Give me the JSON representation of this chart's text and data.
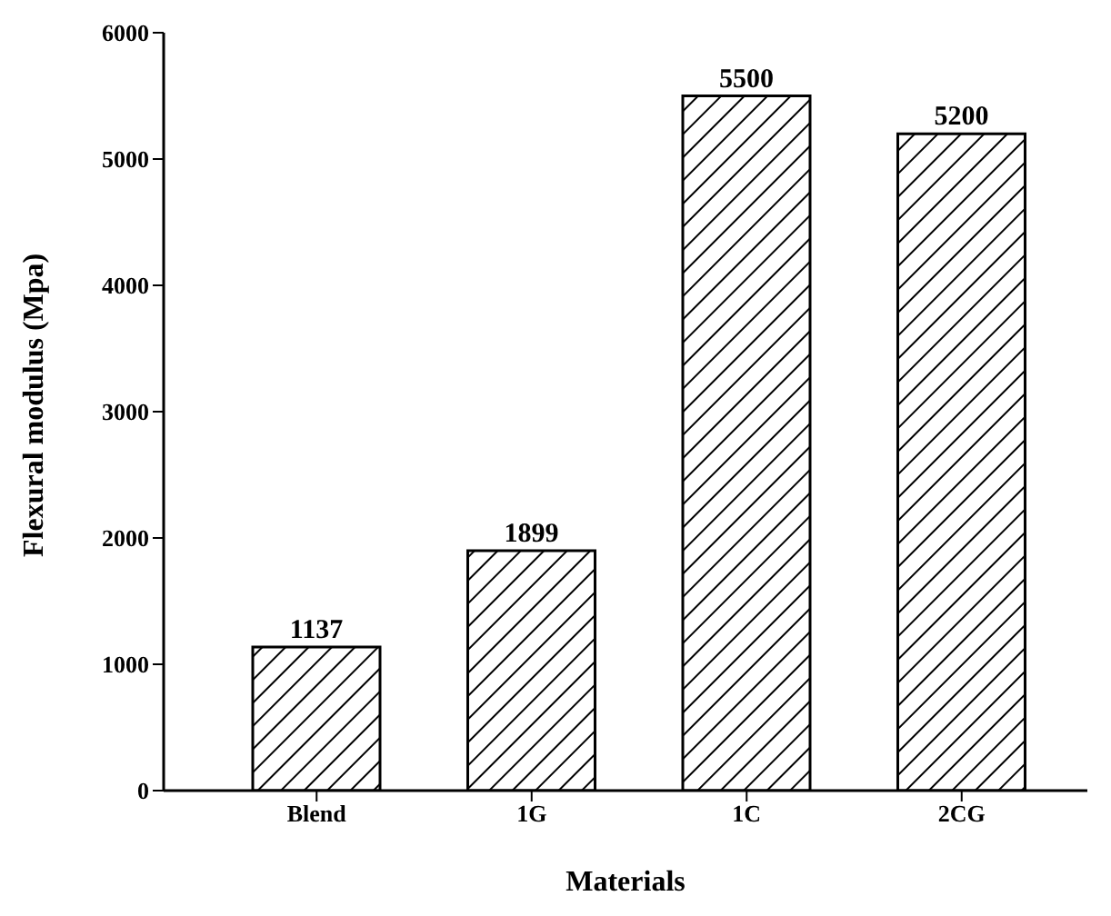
{
  "chart_data": {
    "type": "bar",
    "xlabel": "Materials",
    "ylabel": "Flexural modulus (Mpa)",
    "categories": [
      "Blend",
      "1G",
      "1C",
      "2CG"
    ],
    "values": [
      1137,
      1899,
      5500,
      5200
    ],
    "color": "#000000",
    "ylim": [
      0,
      6000
    ],
    "yticks": [
      0,
      1000,
      2000,
      3000,
      4000,
      5000,
      6000
    ],
    "grid": false,
    "data_labels": true
  }
}
